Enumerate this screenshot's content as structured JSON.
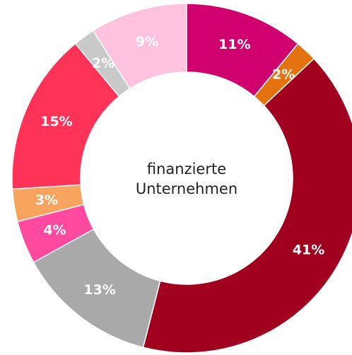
{
  "chart_data": {
    "type": "donut",
    "center_label": [
      "finanzierte",
      "Unternehmen"
    ],
    "categories": [
      null,
      null,
      null,
      null,
      null,
      null,
      null,
      null,
      null
    ],
    "values": [
      11,
      2,
      41,
      13,
      4,
      3,
      15,
      2,
      9
    ],
    "value_labels": [
      "11%",
      "2%",
      "41%",
      "13%",
      "4%",
      "3%",
      "15%",
      "2%",
      "9%"
    ],
    "colors": [
      "#d1006f",
      "#e4720f",
      "#a1001f",
      "#a9a9a9",
      "#ff4aa0",
      "#f8a45e",
      "#ff3358",
      "#c9c9c9",
      "#ffc2de"
    ]
  }
}
